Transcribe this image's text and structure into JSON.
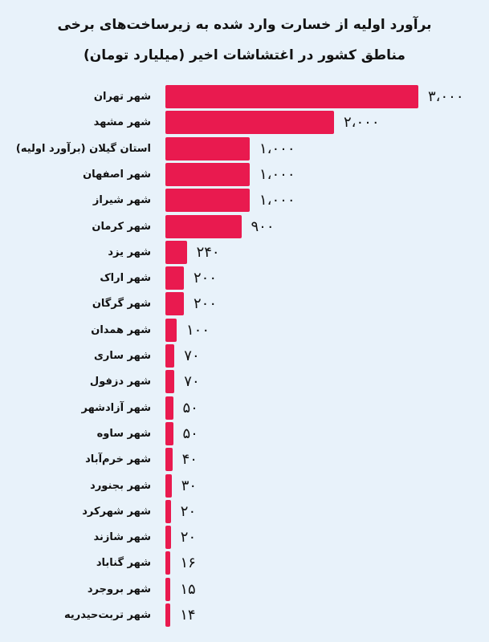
{
  "title": {
    "line1": "برآورد اولیه از خسارت وارد شده به زیرساخت‌های برخی",
    "line2": "مناطق کشور در اغتشاشات اخیر (میلیارد تومان)"
  },
  "colors": {
    "bar": "#e91a4f",
    "background": "#e8f2fa"
  },
  "chart_data": {
    "type": "bar",
    "orientation": "horizontal",
    "title": "برآورد اولیه از خسارت وارد شده به زیرساخت‌های برخی مناطق کشور در اغتشاشات اخیر (میلیارد تومان)",
    "xlabel": "",
    "ylabel": "",
    "unit": "میلیارد تومان",
    "grid": false,
    "legend": null,
    "categories": [
      "شهر تهران",
      "شهر مشهد",
      "استان گیلان (برآورد اولیه)",
      "شهر اصفهان",
      "شهر شیراز",
      "شهر کرمان",
      "شهر یزد",
      "شهر اراک",
      "شهر گرگان",
      "شهر همدان",
      "شهر ساری",
      "شهر دزفول",
      "شهر آزادشهر",
      "شهر ساوه",
      "شهر خرم‌آباد",
      "شهر بجنورد",
      "شهر شهرکرد",
      "شهر شازند",
      "شهر  گناباد",
      "شهر بروجرد",
      "شهر تربت‌حیدریه"
    ],
    "values": [
      3000,
      2000,
      1000,
      1000,
      1000,
      900,
      240,
      200,
      200,
      100,
      70,
      70,
      50,
      50,
      40,
      30,
      20,
      20,
      16,
      15,
      14
    ],
    "value_labels": [
      "۳،۰۰۰",
      "۲،۰۰۰",
      "۱،۰۰۰",
      "۱،۰۰۰",
      "۱،۰۰۰",
      "۹۰۰",
      "۲۴۰",
      "۲۰۰",
      "۲۰۰",
      "۱۰۰",
      "۷۰",
      "۷۰",
      "۵۰",
      "۵۰",
      "۴۰",
      "۳۰",
      "۲۰",
      "۲۰",
      "۱۶",
      "۱۵",
      "۱۴"
    ]
  }
}
